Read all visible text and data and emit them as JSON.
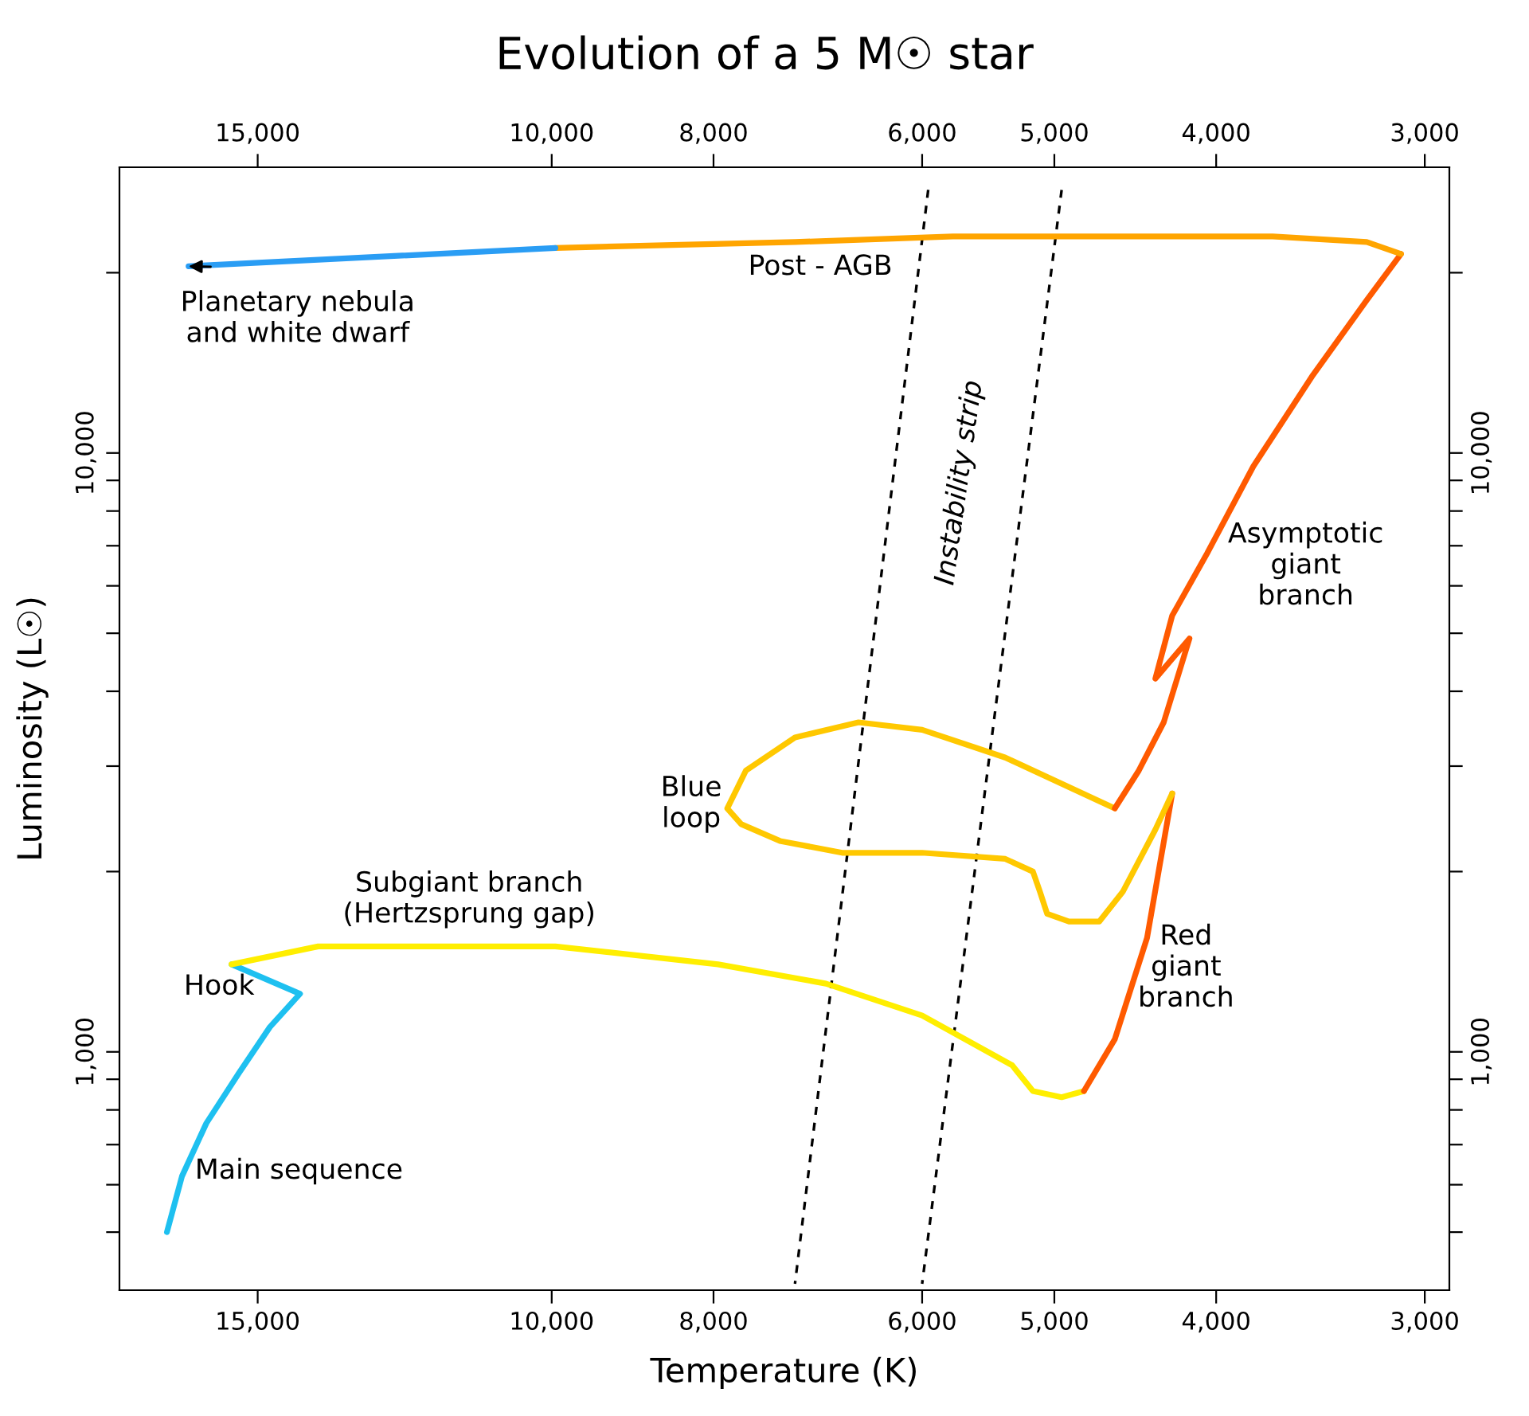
{
  "chart_data": {
    "type": "line",
    "title": "Evolution of a 5 M☉ star",
    "xlabel": "Temperature (K)",
    "ylabel": "Luminosity (L☉)",
    "log": "xy",
    "grid": false,
    "legend": false,
    "marker": "none",
    "xlim": [
      18150,
      2900
    ],
    "ylim": [
      400,
      30000
    ],
    "xticks": [
      {
        "value": 15000,
        "label": "15,000"
      },
      {
        "value": 10000,
        "label": "10,000"
      },
      {
        "value": 8000,
        "label": "8,000"
      },
      {
        "value": 6000,
        "label": "6,000"
      },
      {
        "value": 5000,
        "label": "5,000"
      },
      {
        "value": 4000,
        "label": "4,000"
      },
      {
        "value": 3000,
        "label": "3,000"
      }
    ],
    "yticks": [
      {
        "value": 500,
        "label": null
      },
      {
        "value": 600,
        "label": null
      },
      {
        "value": 700,
        "label": null
      },
      {
        "value": 800,
        "label": null
      },
      {
        "value": 900,
        "label": null
      },
      {
        "value": 1000,
        "label": "1,000"
      },
      {
        "value": 2000,
        "label": null
      },
      {
        "value": 3000,
        "label": null
      },
      {
        "value": 4000,
        "label": null
      },
      {
        "value": 5000,
        "label": null
      },
      {
        "value": 6000,
        "label": null
      },
      {
        "value": 7000,
        "label": null
      },
      {
        "value": 8000,
        "label": null
      },
      {
        "value": 9000,
        "label": null
      },
      {
        "value": 10000,
        "label": "10,000"
      },
      {
        "value": 20000,
        "label": null
      }
    ],
    "series": [
      {
        "color": "#000000",
        "line_style": "dashed",
        "x": [
          5950,
          7150
        ],
        "values": [
          27500,
          410
        ]
      },
      {
        "color": "#000000",
        "line_style": "dashed",
        "x": [
          4950,
          6000
        ],
        "values": [
          27500,
          410
        ]
      },
      {
        "color": "#1ec0f0",
        "line_style": "solid",
        "x": [
          17000,
          16650,
          16100,
          15400,
          14750,
          14150,
          15550
        ],
        "values": [
          500,
          620,
          760,
          920,
          1100,
          1250,
          1400
        ]
      },
      {
        "color": "#ffee00",
        "line_style": "solid",
        "x": [
          15550,
          13800,
          11850,
          9950,
          7950,
          6850,
          6000,
          5300,
          5150,
          4950,
          4800
        ],
        "values": [
          1400,
          1500,
          1500,
          1500,
          1400,
          1300,
          1150,
          950,
          860,
          840,
          860
        ]
      },
      {
        "color": "#ff5a00",
        "line_style": "solid",
        "x": [
          4800,
          4600,
          4400,
          4250
        ],
        "values": [
          860,
          1050,
          1550,
          2700
        ]
      },
      {
        "color": "#ffc800",
        "line_style": "solid",
        "x": [
          4250,
          4350,
          4550,
          4700,
          4900,
          5050,
          5100,
          5150,
          5350,
          6000,
          6700,
          7300,
          7700,
          7850,
          7650,
          7150,
          6550,
          6000,
          5350,
          4600
        ],
        "values": [
          2700,
          2350,
          1850,
          1650,
          1650,
          1700,
          1850,
          2000,
          2100,
          2150,
          2150,
          2250,
          2400,
          2550,
          2950,
          3350,
          3550,
          3450,
          3100,
          2550
        ]
      },
      {
        "color": "#ff5a00",
        "line_style": "solid",
        "x": [
          4600,
          4450,
          4300,
          4150,
          4350,
          4250,
          4050,
          3800,
          3500,
          3250,
          3100
        ],
        "values": [
          2550,
          2950,
          3550,
          4900,
          4200,
          5350,
          6800,
          9500,
          13500,
          18000,
          21500
        ]
      },
      {
        "color": "#ffa500",
        "line_style": "solid",
        "x": [
          3100,
          3250,
          3700,
          4600,
          5750,
          7150,
          9950
        ],
        "values": [
          21500,
          22500,
          23000,
          23000,
          23000,
          22500,
          22000
        ]
      },
      {
        "color": "#2a9df4",
        "line_style": "solid",
        "x": [
          9950,
          16500
        ],
        "values": [
          22000,
          20500
        ]
      }
    ],
    "annotations": [
      "Planetary nebula\nand white dwarf",
      "Post - AGB",
      "Asymptotic\ngiant\nbranch",
      "Blue\nloop",
      "Subgiant branch\n(Hertzsprung gap)",
      "Hook",
      "Main sequence",
      "Red\ngiant\nbranch",
      "Instability strip"
    ]
  }
}
